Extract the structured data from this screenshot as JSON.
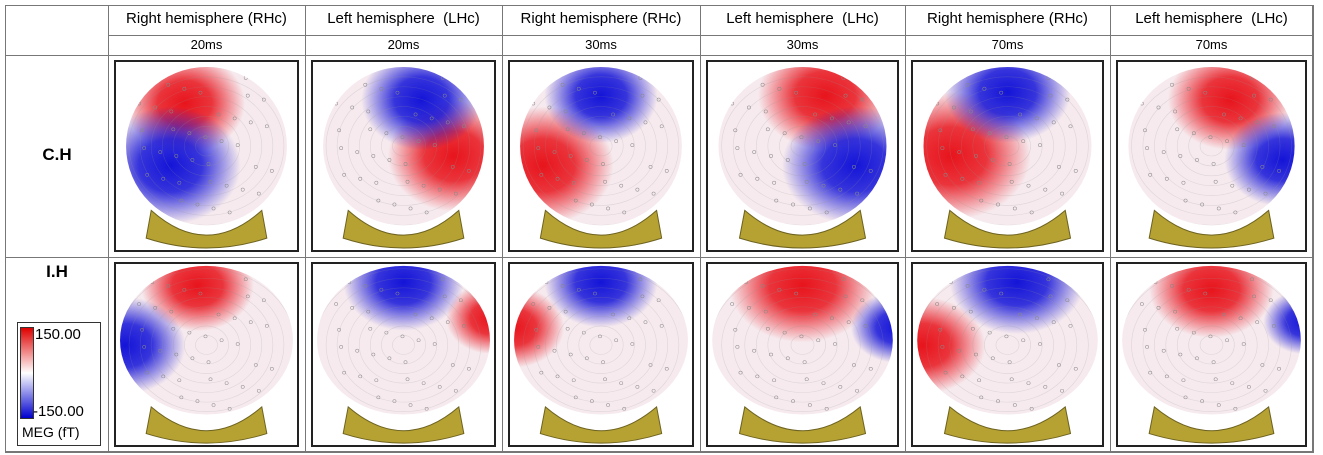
{
  "table": {
    "columns": [
      {
        "hemisphere": "Right hemisphere (RHc)",
        "time": "20ms"
      },
      {
        "hemisphere": "Left hemisphere  (LHc)",
        "time": "20ms"
      },
      {
        "hemisphere": "Right hemisphere (RHc)",
        "time": "30ms"
      },
      {
        "hemisphere": "Left hemisphere  (LHc)",
        "time": "30ms"
      },
      {
        "hemisphere": "Right hemisphere (RHc)",
        "time": "70ms"
      },
      {
        "hemisphere": "Left hemisphere  (LHc)",
        "time": "70ms"
      }
    ],
    "rows": [
      {
        "label": "C.H"
      },
      {
        "label": "I.H"
      }
    ]
  },
  "colorbar": {
    "max": "150.00",
    "min": "-150.00",
    "unit": "MEG (fT)"
  }
}
